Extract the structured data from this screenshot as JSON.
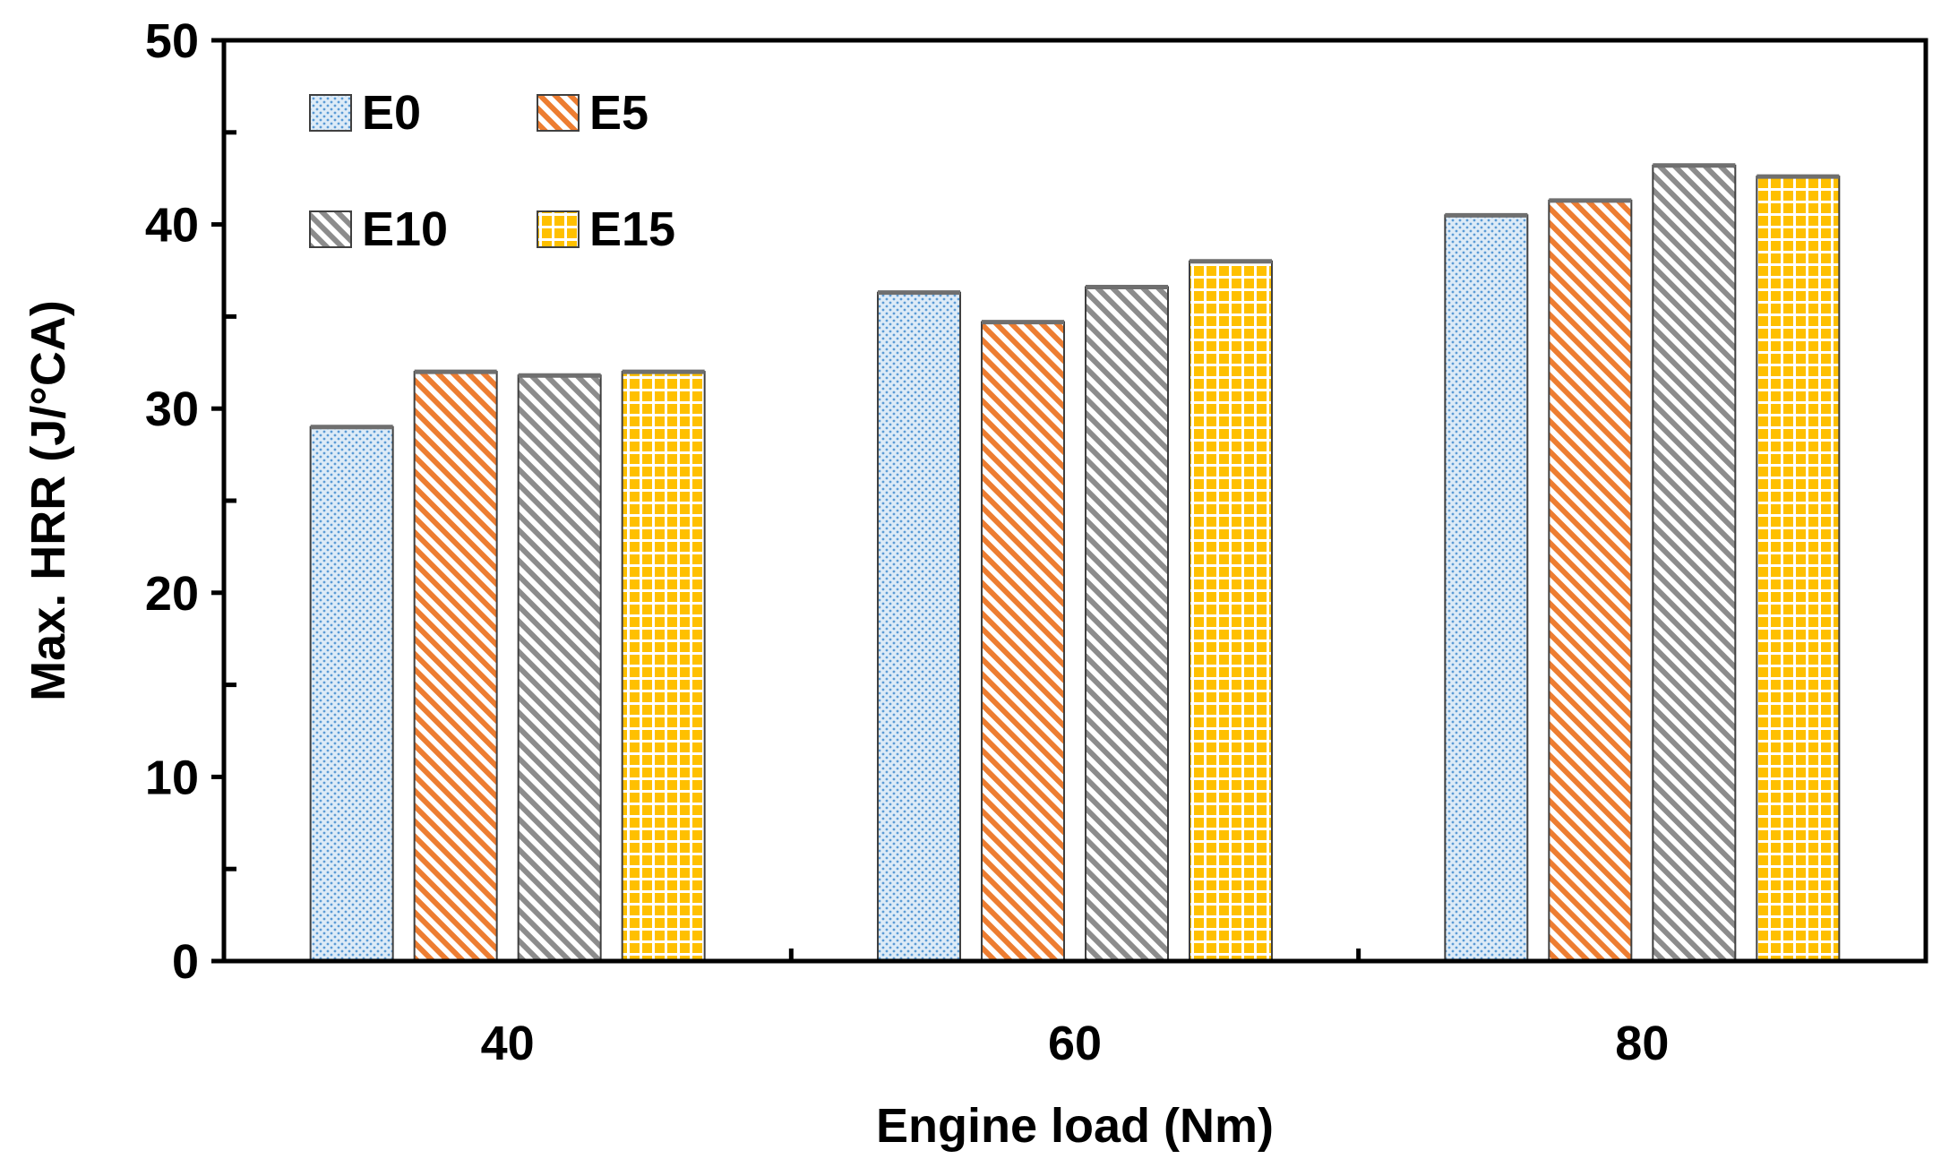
{
  "chart_data": {
    "type": "bar",
    "title": "",
    "xlabel": "Engine load (Nm)",
    "ylabel": "Max. HRR (J/°CA)",
    "ylim": [
      0,
      50
    ],
    "yticks": [
      0,
      10,
      20,
      30,
      40,
      50
    ],
    "categories": [
      "40",
      "60",
      "80"
    ],
    "legend_position": "top-left",
    "series": [
      {
        "name": "E0",
        "values": [
          29.0,
          36.3,
          40.5
        ],
        "color": "#bdd7ee",
        "accent": "#5b9bd5",
        "pattern": "dots"
      },
      {
        "name": "E5",
        "values": [
          32.0,
          34.7,
          41.3
        ],
        "color": "#ffffff",
        "accent": "#ed7d31",
        "pattern": "diagonal"
      },
      {
        "name": "E10",
        "values": [
          31.8,
          36.6,
          43.2
        ],
        "color": "#ffffff",
        "accent": "#8c8c8c",
        "pattern": "diagonal"
      },
      {
        "name": "E15",
        "values": [
          32.0,
          38.0,
          42.6
        ],
        "color": "#ffc000",
        "accent": "#ffffff",
        "pattern": "grid"
      }
    ]
  }
}
